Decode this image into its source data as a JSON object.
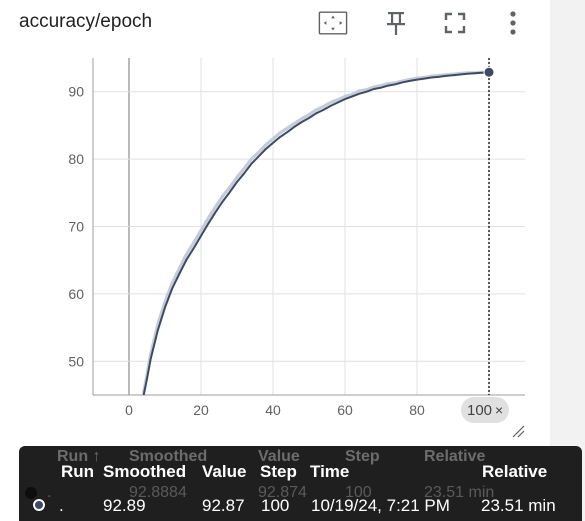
{
  "card": {
    "title": "accuracy/epoch",
    "icons": {
      "fit": "fit-domain-icon",
      "pin": "pin-icon",
      "fullscreen": "fullscreen-icon",
      "more": "more-vert-icon"
    }
  },
  "colors": {
    "smoothed": "#3c4a63",
    "raw": "#c5cbd8",
    "grid": "#e0e0e0",
    "marker": "#3c4a63"
  },
  "x_chip": {
    "label": "100",
    "close": "×"
  },
  "tooltip": {
    "headers": {
      "run": "Run",
      "smoothed": "Smoothed",
      "value": "Value",
      "step": "Step",
      "time": "Time",
      "relative": "Relative"
    },
    "row": {
      "run": ".",
      "smoothed": "92.89",
      "value": "92.87",
      "step": "100",
      "time": "10/19/24, 7:21 PM",
      "relative": "23.51 min"
    },
    "ghost_headers": {
      "run": "Run ↑",
      "smoothed": "Smoothed",
      "value": "Value",
      "step": "Step",
      "relative": "Relative"
    },
    "ghost_row": {
      "run": ".",
      "smoothed": "92.8884",
      "value": "92.874",
      "step": "100",
      "relative": "23.51 min"
    }
  },
  "chart_data": {
    "type": "line",
    "title": "accuracy/epoch",
    "xlabel": "",
    "ylabel": "",
    "xlim": [
      -10,
      110
    ],
    "ylim": [
      45,
      95
    ],
    "xticks": [
      0,
      20,
      40,
      60,
      80,
      100
    ],
    "yticks": [
      50,
      60,
      70,
      80,
      90
    ],
    "grid": true,
    "legend": "none",
    "series": [
      {
        "role": "raw",
        "x": [
          4,
          5,
          6,
          8,
          10,
          12,
          14,
          16,
          18,
          20,
          22,
          24,
          26,
          28,
          30,
          32,
          34,
          36,
          38,
          40,
          42,
          44,
          46,
          48,
          50,
          52,
          54,
          56,
          58,
          60,
          62,
          64,
          66,
          68,
          70,
          72,
          74,
          76,
          78,
          80,
          82,
          84,
          86,
          88,
          90,
          92,
          94,
          96,
          98,
          100
        ],
        "y": [
          45.2,
          48.0,
          51.0,
          55.5,
          58.8,
          61.6,
          63.8,
          65.9,
          67.6,
          69.4,
          71.2,
          72.9,
          74.5,
          75.8,
          77.3,
          78.6,
          80.0,
          81.0,
          82.1,
          83.0,
          83.9,
          84.6,
          85.3,
          86.0,
          86.6,
          87.3,
          87.8,
          88.4,
          88.8,
          89.3,
          89.6,
          90.1,
          90.3,
          90.7,
          90.9,
          91.2,
          91.3,
          91.6,
          91.8,
          92.0,
          92.1,
          92.3,
          92.4,
          92.5,
          92.6,
          92.7,
          92.8,
          92.8,
          92.9,
          92.87
        ]
      },
      {
        "role": "smoothed",
        "x": [
          4,
          5,
          6,
          8,
          10,
          12,
          14,
          16,
          18,
          20,
          22,
          24,
          26,
          28,
          30,
          32,
          34,
          36,
          38,
          40,
          42,
          44,
          46,
          48,
          50,
          52,
          54,
          56,
          58,
          60,
          62,
          64,
          66,
          68,
          70,
          72,
          74,
          76,
          78,
          80,
          82,
          84,
          86,
          88,
          90,
          92,
          94,
          96,
          98,
          100
        ],
        "y": [
          44.8,
          47.4,
          50.3,
          54.6,
          58.0,
          60.8,
          63.0,
          65.1,
          66.8,
          68.6,
          70.4,
          72.1,
          73.7,
          75.1,
          76.6,
          77.9,
          79.3,
          80.4,
          81.5,
          82.4,
          83.3,
          84.0,
          84.8,
          85.5,
          86.1,
          86.8,
          87.3,
          87.9,
          88.4,
          88.9,
          89.3,
          89.7,
          90.0,
          90.4,
          90.6,
          90.9,
          91.1,
          91.4,
          91.6,
          91.8,
          91.95,
          92.1,
          92.2,
          92.35,
          92.45,
          92.55,
          92.65,
          92.75,
          92.82,
          92.89
        ]
      }
    ],
    "hover": {
      "x": 100,
      "y": 92.89
    }
  }
}
